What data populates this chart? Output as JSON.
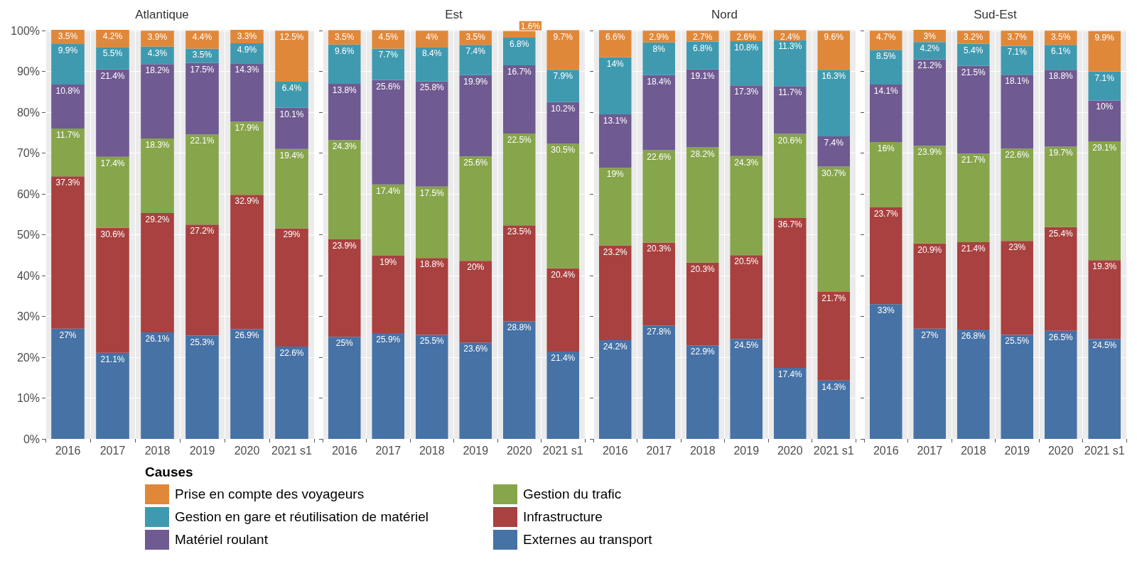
{
  "chart_data": [
    {
      "type": "bar",
      "title": "Atlantique",
      "stacked": true,
      "grid": true,
      "legend": "bottom",
      "legend_title": "Causes",
      "categories": [
        "2016",
        "2017",
        "2018",
        "2019",
        "2020",
        "2021 s1"
      ],
      "ylim": [
        0,
        100.2
      ],
      "yticks": [
        {
          "value": 0,
          "label": "0%"
        },
        {
          "value": 10,
          "label": "10%"
        },
        {
          "value": 20,
          "label": "20%"
        },
        {
          "value": 30,
          "label": "30%"
        },
        {
          "value": 40,
          "label": "40%"
        },
        {
          "value": 50,
          "label": "50%"
        },
        {
          "value": 60,
          "label": "60%"
        },
        {
          "value": 70,
          "label": "70%"
        },
        {
          "value": 80,
          "label": "80%"
        },
        {
          "value": 90,
          "label": "90%"
        },
        {
          "value": 100,
          "label": "100%"
        }
      ],
      "series": [
        {
          "name": "Externes au transport",
          "color": "#4672a6",
          "values": [
            27,
            21.1,
            26.1,
            25.3,
            26.9,
            22.6
          ],
          "value_labels": [
            "27%",
            "21.1%",
            "26.1%",
            "25.3%",
            "26.9%",
            "22.6%"
          ]
        },
        {
          "name": "Infrastructure",
          "color": "#a8413f",
          "values": [
            37.3,
            30.6,
            29.2,
            27.2,
            32.9,
            29
          ],
          "value_labels": [
            "37.3%",
            "30.6%",
            "29.2%",
            "27.2%",
            "32.9%",
            "29%"
          ]
        },
        {
          "name": "Gestion du trafic",
          "color": "#87a54b",
          "values": [
            11.7,
            17.4,
            18.3,
            22.1,
            17.9,
            19.4
          ],
          "value_labels": [
            "11.7%",
            "17.4%",
            "18.3%",
            "22.1%",
            "17.9%",
            "19.4%"
          ]
        },
        {
          "name": "Matériel roulant",
          "color": "#6f5a91",
          "values": [
            10.8,
            21.4,
            18.2,
            17.5,
            14.3,
            10.1
          ],
          "value_labels": [
            "10.8%",
            "21.4%",
            "18.2%",
            "17.5%",
            "14.3%",
            "10.1%"
          ]
        },
        {
          "name": "Gestion en gare et réutilisation de matériel",
          "color": "#3f9ab0",
          "values": [
            9.9,
            5.5,
            4.3,
            3.5,
            4.9,
            6.4
          ],
          "value_labels": [
            "9.9%",
            "5.5%",
            "4.3%",
            "3.5%",
            "4.9%",
            "6.4%"
          ]
        },
        {
          "name": "Prise en compte des voyageurs",
          "color": "#e0883a",
          "values": [
            3.5,
            4.2,
            3.9,
            4.4,
            3.3,
            12.5
          ],
          "value_labels": [
            "3.5%",
            "4.2%",
            "3.9%",
            "4.4%",
            "3.3%",
            "12.5%"
          ]
        }
      ]
    },
    {
      "type": "bar",
      "title": "Est",
      "stacked": true,
      "grid": true,
      "tick_labels": "x",
      "categories": [
        "2016",
        "2017",
        "2018",
        "2019",
        "2020",
        "2021 s1"
      ],
      "ylim": [
        0,
        100.2
      ],
      "yticks": [
        0,
        10,
        20,
        30,
        40,
        50,
        60,
        70,
        80,
        90,
        100
      ],
      "series": [
        {
          "color": "#4672a6",
          "values": [
            25,
            25.9,
            25.5,
            23.6,
            28.8,
            21.4
          ],
          "value_labels": [
            "25%",
            "25.9%",
            "25.5%",
            "23.6%",
            "28.8%",
            "21.4%"
          ]
        },
        {
          "color": "#a8413f",
          "values": [
            23.9,
            19,
            18.8,
            20,
            23.5,
            20.4
          ],
          "value_labels": [
            "23.9%",
            "19%",
            "18.8%",
            "20%",
            "23.5%",
            "20.4%"
          ]
        },
        {
          "color": "#87a54b",
          "values": [
            24.3,
            17.4,
            17.5,
            25.6,
            22.5,
            30.5
          ],
          "value_labels": [
            "24.3%",
            "17.4%",
            "17.5%",
            "25.6%",
            "22.5%",
            "30.5%"
          ]
        },
        {
          "color": "#6f5a91",
          "values": [
            13.8,
            25.6,
            25.8,
            19.9,
            16.7,
            10.2
          ],
          "value_labels": [
            "13.8%",
            "25.6%",
            "25.8%",
            "19.9%",
            "16.7%",
            "10.2%"
          ]
        },
        {
          "color": "#3f9ab0",
          "values": [
            9.6,
            7.7,
            8.4,
            7.4,
            6.8,
            7.9
          ],
          "value_labels": [
            "9.6%",
            "7.7%",
            "8.4%",
            "7.4%",
            "6.8%",
            "7.9%"
          ]
        },
        {
          "color": "#e0883a",
          "values": [
            3.5,
            4.5,
            4,
            3.5,
            1.6,
            9.7
          ],
          "value_labels": [
            "3.5%",
            "4.5%",
            "4%",
            "3.5%",
            "1.6%",
            "9.7%"
          ]
        }
      ]
    },
    {
      "type": "bar",
      "title": "Nord",
      "stacked": true,
      "grid": true,
      "tick_labels": "x",
      "categories": [
        "2016",
        "2017",
        "2018",
        "2019",
        "2020",
        "2021 s1"
      ],
      "ylim": [
        0,
        100.2
      ],
      "yticks": [
        0,
        10,
        20,
        30,
        40,
        50,
        60,
        70,
        80,
        90,
        100
      ],
      "series": [
        {
          "color": "#4672a6",
          "values": [
            24.2,
            27.8,
            22.9,
            24.5,
            17.4,
            14.3
          ],
          "value_labels": [
            "24.2%",
            "27.8%",
            "22.9%",
            "24.5%",
            "17.4%",
            "14.3%"
          ]
        },
        {
          "color": "#a8413f",
          "values": [
            23.2,
            20.3,
            20.3,
            20.5,
            36.7,
            21.7
          ],
          "value_labels": [
            "23.2%",
            "20.3%",
            "20.3%",
            "20.5%",
            "36.7%",
            "21.7%"
          ]
        },
        {
          "color": "#87a54b",
          "values": [
            19,
            22.6,
            28.2,
            24.3,
            20.6,
            30.7
          ],
          "value_labels": [
            "19%",
            "22.6%",
            "28.2%",
            "24.3%",
            "20.6%",
            "30.7%"
          ]
        },
        {
          "color": "#6f5a91",
          "values": [
            13.1,
            18.4,
            19.1,
            17.3,
            11.7,
            7.4
          ],
          "value_labels": [
            "13.1%",
            "18.4%",
            "19.1%",
            "17.3%",
            "11.7%",
            "7.4%"
          ]
        },
        {
          "color": "#3f9ab0",
          "values": [
            14,
            8,
            6.8,
            10.8,
            11.3,
            16.3
          ],
          "value_labels": [
            "14%",
            "8%",
            "6.8%",
            "10.8%",
            "11.3%",
            "16.3%"
          ]
        },
        {
          "color": "#e0883a",
          "values": [
            6.6,
            2.9,
            2.7,
            2.6,
            2.4,
            9.6
          ],
          "value_labels": [
            "6.6%",
            "2.9%",
            "2.7%",
            "2.6%",
            "2.4%",
            "9.6%"
          ]
        }
      ]
    },
    {
      "type": "bar",
      "title": "Sud-Est",
      "stacked": true,
      "grid": true,
      "tick_labels": "x",
      "categories": [
        "2016",
        "2017",
        "2018",
        "2019",
        "2020",
        "2021 s1"
      ],
      "ylim": [
        0,
        100.2
      ],
      "yticks": [
        0,
        10,
        20,
        30,
        40,
        50,
        60,
        70,
        80,
        90,
        100
      ],
      "series": [
        {
          "color": "#4672a6",
          "values": [
            33,
            27,
            26.8,
            25.5,
            26.5,
            24.5
          ],
          "value_labels": [
            "33%",
            "27%",
            "26.8%",
            "25.5%",
            "26.5%",
            "24.5%"
          ]
        },
        {
          "color": "#a8413f",
          "values": [
            23.7,
            20.9,
            21.4,
            23,
            25.4,
            19.3
          ],
          "value_labels": [
            "23.7%",
            "20.9%",
            "21.4%",
            "23%",
            "25.4%",
            "19.3%"
          ]
        },
        {
          "color": "#87a54b",
          "values": [
            16,
            23.9,
            21.7,
            22.6,
            19.7,
            29.1
          ],
          "value_labels": [
            "16%",
            "23.9%",
            "21.7%",
            "22.6%",
            "19.7%",
            "29.1%"
          ]
        },
        {
          "color": "#6f5a91",
          "values": [
            14.1,
            21.2,
            21.5,
            18.1,
            18.8,
            10
          ],
          "value_labels": [
            "14.1%",
            "21.2%",
            "21.5%",
            "18.1%",
            "18.8%",
            "10%"
          ]
        },
        {
          "color": "#3f9ab0",
          "values": [
            8.5,
            4.2,
            5.4,
            7.1,
            6.1,
            7.1
          ],
          "value_labels": [
            "8.5%",
            "4.2%",
            "5.4%",
            "7.1%",
            "6.1%",
            "7.1%"
          ]
        },
        {
          "color": "#e0883a",
          "values": [
            4.7,
            3,
            3.2,
            3.7,
            3.5,
            9.9
          ],
          "value_labels": [
            "4.7%",
            "3%",
            "3.2%",
            "3.7%",
            "3.5%",
            "9.9%"
          ]
        }
      ]
    }
  ]
}
